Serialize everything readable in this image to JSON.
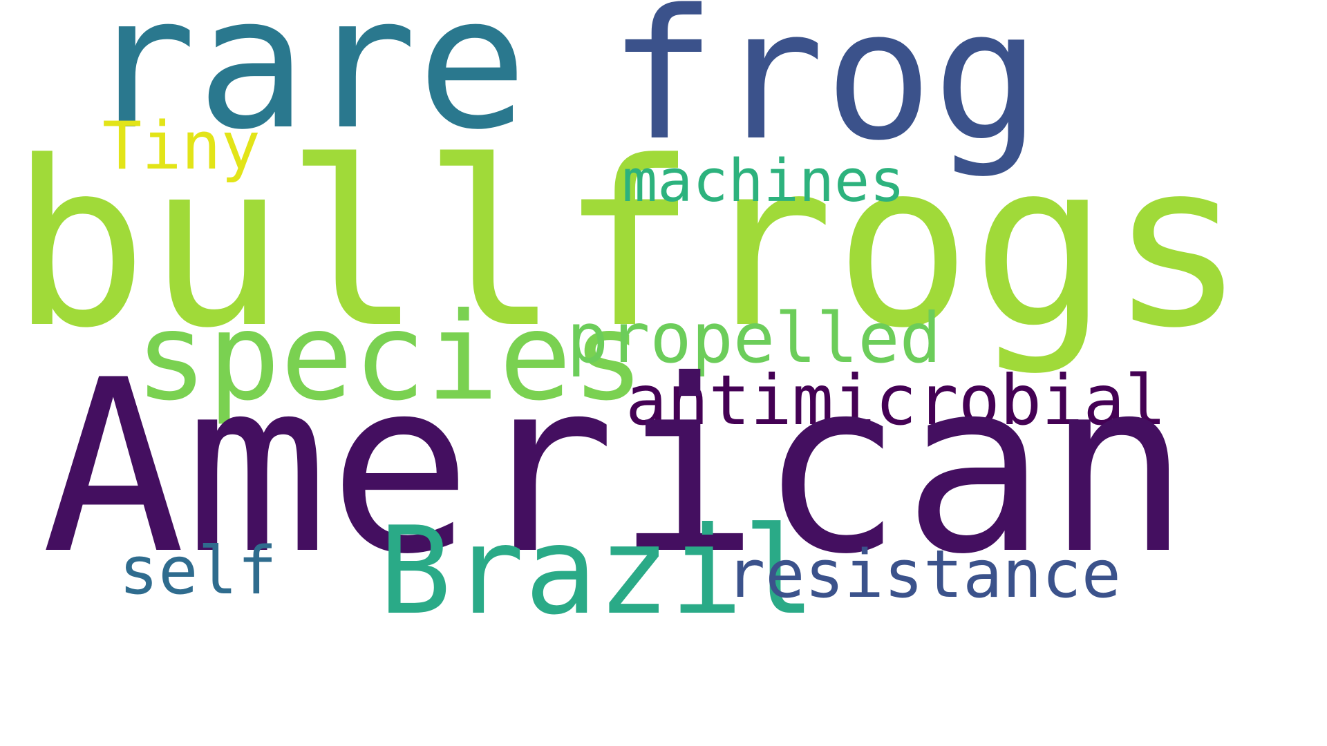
{
  "words": [
    {
      "text": "rare",
      "color": "#2a788e"
    },
    {
      "text": "frog",
      "color": "#3b528b"
    },
    {
      "text": "bullfrogs",
      "color": "#a0da39"
    },
    {
      "text": "Tiny",
      "color": "#e2e418"
    },
    {
      "text": "machines",
      "color": "#2db27d"
    },
    {
      "text": "species",
      "color": "#7ad151"
    },
    {
      "text": "propelled",
      "color": "#6ccd5a"
    },
    {
      "text": "antimicrobial",
      "color": "#440154"
    },
    {
      "text": "American",
      "color": "#440f60"
    },
    {
      "text": "self",
      "color": "#2f6c8e"
    },
    {
      "text": "Brazil",
      "color": "#2aaa87"
    },
    {
      "text": "resistance",
      "color": "#3b528b"
    }
  ]
}
